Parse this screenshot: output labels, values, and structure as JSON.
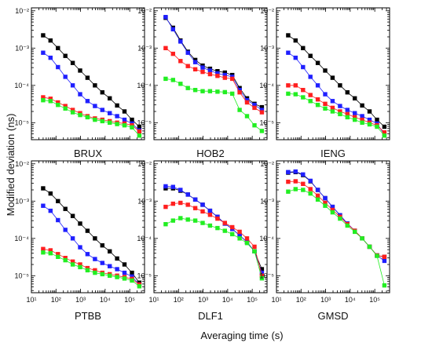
{
  "figure": {
    "ylabel": "Modified deviation (ns)",
    "xlabel": "Averaging time (s)"
  },
  "chart_data": {
    "type": "line",
    "layout": "2x3 panels, shared log axes",
    "x_scale": "log",
    "y_scale": "log",
    "xlim": [
      10,
      400000
    ],
    "ylim": [
      3.5e-06,
      0.012
    ],
    "x_ticks": [
      10,
      100,
      1000,
      10000,
      100000
    ],
    "x_tick_labels": [
      "10¹",
      "10²",
      "10³",
      "10⁴",
      "10⁵"
    ],
    "y_ticks": [
      1e-05,
      0.0001,
      0.001,
      0.01
    ],
    "y_tick_labels": [
      "10⁻⁵",
      "10⁻⁴",
      "10⁻³",
      "10⁻²"
    ],
    "x": [
      30,
      60,
      120,
      240,
      480,
      960,
      1920,
      3840,
      7680,
      15360,
      30720,
      61440,
      122880,
      245760
    ],
    "series_colors": [
      "#000000",
      "#1f1fff",
      "#ff1f1f",
      "#22ee22"
    ],
    "panels": [
      {
        "title": "BRUX",
        "series": [
          {
            "color": "#000000",
            "values": [
              0.0022,
              0.0016,
              0.001,
              0.00062,
              0.0004,
              0.00025,
              0.00016,
              0.0001,
              6.5e-05,
              4.5e-05,
              2.9e-05,
              2e-05,
              1.2e-05,
              7.8e-06
            ]
          },
          {
            "color": "#1f1fff",
            "values": [
              0.00075,
              0.00055,
              0.00031,
              0.00017,
              0.0001,
              5.8e-05,
              3.8e-05,
              2.8e-05,
              2.2e-05,
              1.8e-05,
              1.5e-05,
              1.2e-05,
              9.5e-06,
              6.2e-06
            ]
          },
          {
            "color": "#ff1f1f",
            "values": [
              4.8e-05,
              4.4e-05,
              3.5e-05,
              2.8e-05,
              2.2e-05,
              1.8e-05,
              1.5e-05,
              1.3e-05,
              1.2e-05,
              1.1e-05,
              1e-05,
              9.5e-06,
              8.5e-06,
              5.8e-06
            ]
          },
          {
            "color": "#22ee22",
            "values": [
              4e-05,
              3.8e-05,
              3e-05,
              2.4e-05,
              1.9e-05,
              1.6e-05,
              1.4e-05,
              1.2e-05,
              1.1e-05,
              1e-05,
              9.2e-06,
              8.5e-06,
              7.5e-06,
              4.5e-06
            ]
          }
        ]
      },
      {
        "title": "HOB2",
        "series": [
          {
            "color": "#000000",
            "values": [
              0.0065,
              0.0035,
              0.0016,
              0.0008,
              0.00048,
              0.00034,
              0.00028,
              0.00024,
              0.00022,
              0.00019,
              8.5e-05,
              4.5e-05,
              3.2e-05,
              2.6e-05
            ]
          },
          {
            "color": "#1f1fff",
            "values": [
              0.0068,
              0.0032,
              0.0015,
              0.00075,
              0.00042,
              0.0003,
              0.00025,
              0.00021,
              0.00019,
              0.00017,
              7.5e-05,
              4e-05,
              3e-05,
              2.2e-05
            ]
          },
          {
            "color": "#ff1f1f",
            "values": [
              0.001,
              0.0007,
              0.00045,
              0.00033,
              0.00027,
              0.00023,
              0.0002,
              0.00018,
              0.00016,
              0.00015,
              6.5e-05,
              3.5e-05,
              2.5e-05,
              1.9e-05
            ]
          },
          {
            "color": "#22ee22",
            "values": [
              0.00015,
              0.00014,
              0.00011,
              8.5e-05,
              7.5e-05,
              7e-05,
              7e-05,
              6.8e-05,
              6.6e-05,
              6e-05,
              2.2e-05,
              1.5e-05,
              8.5e-06,
              6e-06
            ]
          }
        ]
      },
      {
        "title": "IENG",
        "series": [
          {
            "color": "#000000",
            "values": [
              0.0022,
              0.0016,
              0.001,
              0.00062,
              0.0004,
              0.00025,
              0.00016,
              0.0001,
              6.5e-05,
              4.5e-05,
              2.9e-05,
              2e-05,
              1.2e-05,
              7.8e-06
            ]
          },
          {
            "color": "#1f1fff",
            "values": [
              0.00075,
              0.00055,
              0.00031,
              0.00017,
              0.0001,
              5.8e-05,
              3.8e-05,
              2.8e-05,
              2.2e-05,
              1.8e-05,
              1.5e-05,
              1.2e-05,
              9.5e-06,
              4.8e-06
            ]
          },
          {
            "color": "#ff1f1f",
            "values": [
              0.0001,
              0.0001,
              7.5e-05,
              5.5e-05,
              4.2e-05,
              3.2e-05,
              2.5e-05,
              2e-05,
              1.7e-05,
              1.4e-05,
              1.2e-05,
              1e-05,
              8.5e-06,
              5.5e-06
            ]
          },
          {
            "color": "#22ee22",
            "values": [
              6e-05,
              5.8e-05,
              4.8e-05,
              3.8e-05,
              3e-05,
              2.4e-05,
              2e-05,
              1.7e-05,
              1.4e-05,
              1.2e-05,
              1e-05,
              9e-06,
              7.8e-06,
              4.5e-06
            ]
          }
        ]
      },
      {
        "title": "PTBB",
        "series": [
          {
            "color": "#000000",
            "values": [
              0.0022,
              0.0016,
              0.001,
              0.00062,
              0.0004,
              0.00025,
              0.00016,
              0.0001,
              6.5e-05,
              4.5e-05,
              2.9e-05,
              2e-05,
              1.2e-05,
              6.5e-06
            ]
          },
          {
            "color": "#1f1fff",
            "values": [
              0.00075,
              0.00055,
              0.00031,
              0.00017,
              0.0001,
              5.8e-05,
              3.8e-05,
              2.8e-05,
              2.2e-05,
              1.8e-05,
              1.5e-05,
              1.2e-05,
              9.5e-06,
              5.8e-06
            ]
          },
          {
            "color": "#ff1f1f",
            "values": [
              5.2e-05,
              4.8e-05,
              3.8e-05,
              3e-05,
              2.4e-05,
              2e-05,
              1.6e-05,
              1.4e-05,
              1.2e-05,
              1.1e-05,
              1e-05,
              9.2e-06,
              8.2e-06,
              5.8e-06
            ]
          },
          {
            "color": "#22ee22",
            "values": [
              4.2e-05,
              4e-05,
              3.2e-05,
              2.6e-05,
              2e-05,
              1.7e-05,
              1.4e-05,
              1.2e-05,
              1.1e-05,
              1e-05,
              9.2e-06,
              8.4e-06,
              7.4e-06,
              5.2e-06
            ]
          }
        ]
      },
      {
        "title": "DLF1",
        "series": [
          {
            "color": "#000000",
            "values": [
              0.0022,
              0.0022,
              0.0019,
              0.0015,
              0.0011,
              0.0008,
              0.00055,
              0.00038,
              0.00025,
              0.00018,
              0.00012,
              8e-05,
              4.5e-05,
              1.5e-05
            ]
          },
          {
            "color": "#1f1fff",
            "values": [
              0.0025,
              0.0024,
              0.002,
              0.0015,
              0.0011,
              0.0008,
              0.00055,
              0.00038,
              0.00025,
              0.00018,
              0.00012,
              8e-05,
              4.5e-05,
              1.2e-05
            ]
          },
          {
            "color": "#ff1f1f",
            "values": [
              0.0007,
              0.00085,
              0.0009,
              0.0008,
              0.00065,
              0.00053,
              0.00043,
              0.00034,
              0.00026,
              0.0002,
              0.00015,
              0.0001,
              6e-05,
              1e-05
            ]
          },
          {
            "color": "#22ee22",
            "values": [
              0.00024,
              0.0003,
              0.00035,
              0.00032,
              0.0003,
              0.00026,
              0.00022,
              0.00019,
              0.00016,
              0.00013,
              0.0001,
              7.5e-05,
              4.5e-05,
              8.5e-06
            ]
          }
        ]
      },
      {
        "title": "GMSD",
        "series": [
          {
            "color": "#000000",
            "values": [
              0.0058,
              0.006,
              0.005,
              0.0034,
              0.002,
              0.0012,
              0.0007,
              0.00042,
              0.00025,
              0.00016,
              0.0001,
              6e-05,
              3.5e-05,
              3.2e-05
            ]
          },
          {
            "color": "#1f1fff",
            "values": [
              0.006,
              0.0062,
              0.0052,
              0.0035,
              0.002,
              0.0012,
              0.0007,
              0.00042,
              0.00025,
              0.00016,
              0.0001,
              6e-05,
              3.5e-05,
              2.5e-05
            ]
          },
          {
            "color": "#ff1f1f",
            "values": [
              0.0033,
              0.0034,
              0.0029,
              0.0021,
              0.0014,
              0.0009,
              0.00058,
              0.00038,
              0.00024,
              0.00016,
              0.0001,
              6e-05,
              3.5e-05,
              3.2e-05
            ]
          },
          {
            "color": "#22ee22",
            "values": [
              0.0018,
              0.0021,
              0.002,
              0.0016,
              0.0011,
              0.00075,
              0.0005,
              0.00034,
              0.00022,
              0.00015,
              0.0001,
              6e-05,
              3.4e-05,
              5.5e-06
            ]
          }
        ]
      }
    ]
  }
}
